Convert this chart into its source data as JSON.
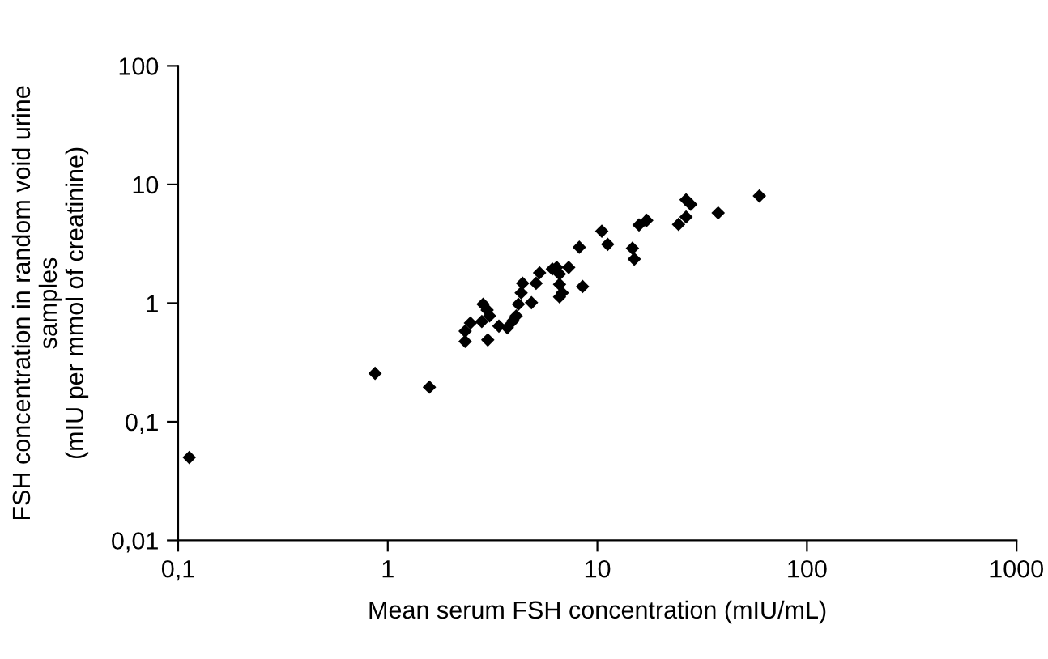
{
  "chart_data": {
    "type": "scatter",
    "xlabel": "Mean serum FSH concentration (mIU/mL)",
    "ylabel": "FSH concentration in random void urine\nsamples\n(mIU per mmol of creatinine)",
    "log": "xy",
    "marker": "diamond",
    "grid": false,
    "legend": false,
    "xlim": [
      0.1,
      1000
    ],
    "ylim": [
      0.01,
      100
    ],
    "xticks": [
      {
        "value": 0.1,
        "label": "0,1"
      },
      1,
      10,
      100,
      1000
    ],
    "yticks": [
      {
        "value": 0.01,
        "label": "0,01"
      },
      {
        "value": 0.1,
        "label": "0,1"
      },
      1,
      10,
      100
    ],
    "series": [
      {
        "color": "#000000",
        "x": [
          0.113,
          0.87,
          1.58,
          2.34,
          2.34,
          2.48,
          2.81,
          2.85,
          2.98,
          3.06,
          3.0,
          3.39,
          3.72,
          3.96,
          4.1,
          4.2,
          4.33,
          4.4,
          4.85,
          5.1,
          5.3,
          6.1,
          6.4,
          6.6,
          6.6,
          6.8,
          6.6,
          7.3,
          8.5,
          8.2,
          10.5,
          11.2,
          14.7,
          15.0,
          15.8,
          17.2,
          24.4,
          26.5,
          26.5,
          27.9,
          37.7,
          59.3
        ],
        "values": [
          0.05,
          0.256,
          0.196,
          0.476,
          0.58,
          0.68,
          0.7,
          0.98,
          0.875,
          0.78,
          0.49,
          0.64,
          0.62,
          0.71,
          0.78,
          0.98,
          1.22,
          1.47,
          1.01,
          1.47,
          1.8,
          1.94,
          2.0,
          1.76,
          1.44,
          1.22,
          1.13,
          2.0,
          1.38,
          2.96,
          4.04,
          3.13,
          2.9,
          2.35,
          4.56,
          4.99,
          4.61,
          5.33,
          7.43,
          6.8,
          5.76,
          8.0
        ]
      }
    ]
  }
}
